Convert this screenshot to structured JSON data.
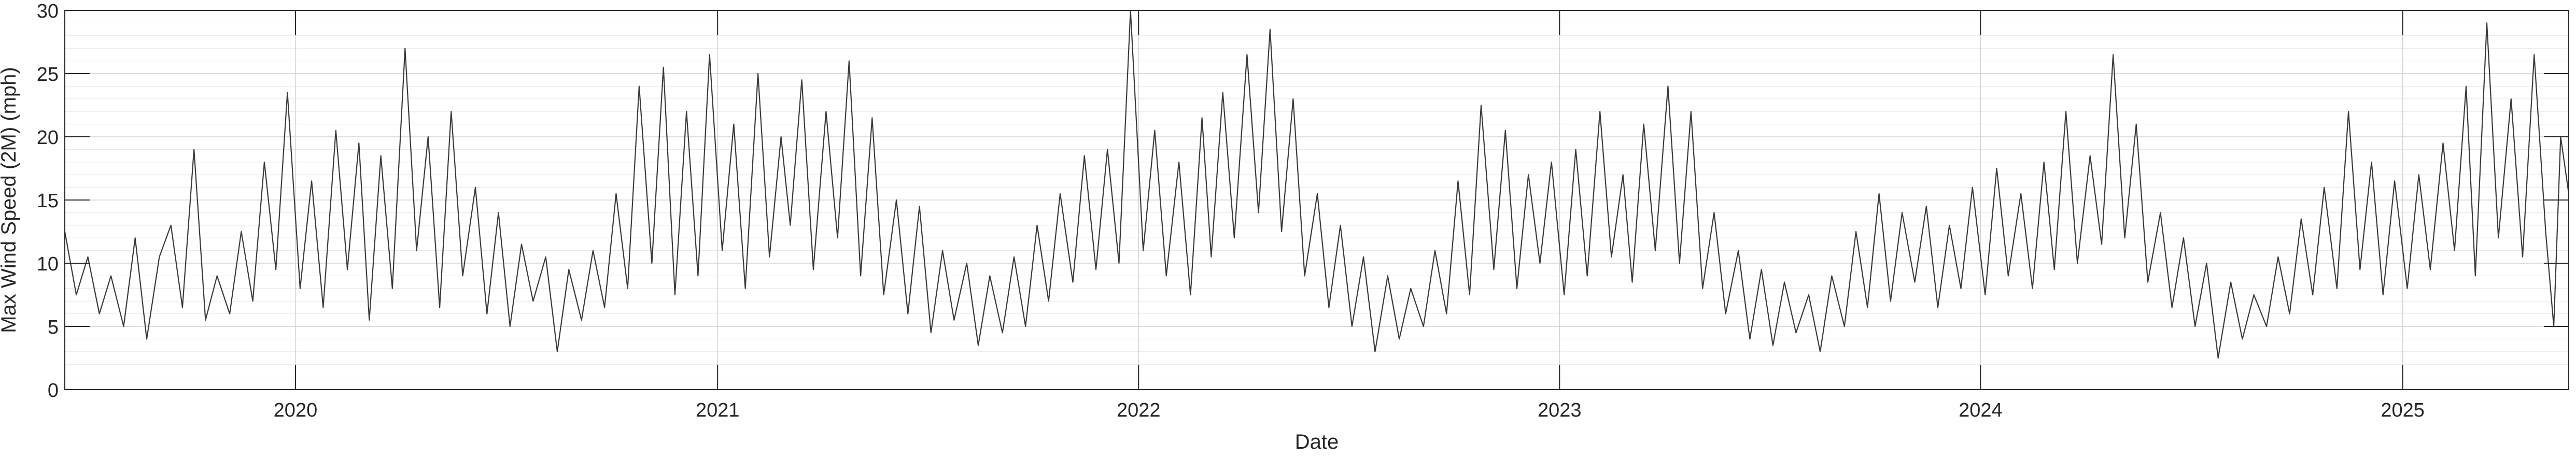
{
  "chart_data": {
    "type": "line",
    "title": "",
    "xlabel": "Date",
    "ylabel": "Max Wind Speed (2M) (mph)",
    "x_range": [
      "2019-06-15",
      "2025-05-25"
    ],
    "ylim": [
      0,
      30
    ],
    "yticks": [
      0,
      5,
      10,
      15,
      20,
      25,
      30
    ],
    "xticks": [
      {
        "date": "2020-01-01",
        "label": "2020"
      },
      {
        "date": "2021-01-01",
        "label": "2021"
      },
      {
        "date": "2022-01-01",
        "label": "2022"
      },
      {
        "date": "2023-01-01",
        "label": "2023"
      },
      {
        "date": "2024-01-01",
        "label": "2024"
      },
      {
        "date": "2025-01-01",
        "label": "2025"
      }
    ],
    "grid": true,
    "minor_grid": true,
    "line_color": "#3a3a3a",
    "series": [
      {
        "points": [
          [
            "2019-06-15",
            12.5
          ],
          [
            "2019-06-25",
            7.5
          ],
          [
            "2019-07-05",
            10.5
          ],
          [
            "2019-07-15",
            6.0
          ],
          [
            "2019-07-25",
            9.0
          ],
          [
            "2019-08-05",
            5.0
          ],
          [
            "2019-08-15",
            12.0
          ],
          [
            "2019-08-25",
            4.0
          ],
          [
            "2019-09-05",
            10.5
          ],
          [
            "2019-09-15",
            13.0
          ],
          [
            "2019-09-25",
            6.5
          ],
          [
            "2019-10-05",
            19.0
          ],
          [
            "2019-10-15",
            5.5
          ],
          [
            "2019-10-25",
            9.0
          ],
          [
            "2019-11-05",
            6.0
          ],
          [
            "2019-11-15",
            12.5
          ],
          [
            "2019-11-25",
            7.0
          ],
          [
            "2019-12-05",
            18.0
          ],
          [
            "2019-12-15",
            9.5
          ],
          [
            "2019-12-25",
            23.5
          ],
          [
            "2020-01-05",
            8.0
          ],
          [
            "2020-01-15",
            16.5
          ],
          [
            "2020-01-25",
            6.5
          ],
          [
            "2020-02-05",
            20.5
          ],
          [
            "2020-02-15",
            9.5
          ],
          [
            "2020-02-25",
            19.5
          ],
          [
            "2020-03-05",
            5.5
          ],
          [
            "2020-03-15",
            18.5
          ],
          [
            "2020-03-25",
            8.0
          ],
          [
            "2020-04-05",
            27.0
          ],
          [
            "2020-04-15",
            11.0
          ],
          [
            "2020-04-25",
            20.0
          ],
          [
            "2020-05-05",
            6.5
          ],
          [
            "2020-05-15",
            22.0
          ],
          [
            "2020-05-25",
            9.0
          ],
          [
            "2020-06-05",
            16.0
          ],
          [
            "2020-06-15",
            6.0
          ],
          [
            "2020-06-25",
            14.0
          ],
          [
            "2020-07-05",
            5.0
          ],
          [
            "2020-07-15",
            11.5
          ],
          [
            "2020-07-25",
            7.0
          ],
          [
            "2020-08-05",
            10.5
          ],
          [
            "2020-08-15",
            3.0
          ],
          [
            "2020-08-25",
            9.5
          ],
          [
            "2020-09-05",
            5.5
          ],
          [
            "2020-09-15",
            11.0
          ],
          [
            "2020-09-25",
            6.5
          ],
          [
            "2020-10-05",
            15.5
          ],
          [
            "2020-10-15",
            8.0
          ],
          [
            "2020-10-25",
            24.0
          ],
          [
            "2020-11-05",
            10.0
          ],
          [
            "2020-11-15",
            25.5
          ],
          [
            "2020-11-25",
            7.5
          ],
          [
            "2020-12-05",
            22.0
          ],
          [
            "2020-12-15",
            9.0
          ],
          [
            "2020-12-25",
            26.5
          ],
          [
            "2021-01-05",
            11.0
          ],
          [
            "2021-01-15",
            21.0
          ],
          [
            "2021-01-25",
            8.0
          ],
          [
            "2021-02-05",
            25.0
          ],
          [
            "2021-02-15",
            10.5
          ],
          [
            "2021-02-25",
            20.0
          ],
          [
            "2021-03-05",
            13.0
          ],
          [
            "2021-03-15",
            24.5
          ],
          [
            "2021-03-25",
            9.5
          ],
          [
            "2021-04-05",
            22.0
          ],
          [
            "2021-04-15",
            12.0
          ],
          [
            "2021-04-25",
            26.0
          ],
          [
            "2021-05-05",
            9.0
          ],
          [
            "2021-05-15",
            21.5
          ],
          [
            "2021-05-25",
            7.5
          ],
          [
            "2021-06-05",
            15.0
          ],
          [
            "2021-06-15",
            6.0
          ],
          [
            "2021-06-25",
            14.5
          ],
          [
            "2021-07-05",
            4.5
          ],
          [
            "2021-07-15",
            11.0
          ],
          [
            "2021-07-25",
            5.5
          ],
          [
            "2021-08-05",
            10.0
          ],
          [
            "2021-08-15",
            3.5
          ],
          [
            "2021-08-25",
            9.0
          ],
          [
            "2021-09-05",
            4.5
          ],
          [
            "2021-09-15",
            10.5
          ],
          [
            "2021-09-25",
            5.0
          ],
          [
            "2021-10-05",
            13.0
          ],
          [
            "2021-10-15",
            7.0
          ],
          [
            "2021-10-25",
            15.5
          ],
          [
            "2021-11-05",
            8.5
          ],
          [
            "2021-11-15",
            18.5
          ],
          [
            "2021-11-25",
            9.5
          ],
          [
            "2021-12-05",
            19.0
          ],
          [
            "2021-12-15",
            10.0
          ],
          [
            "2021-12-25",
            30.0
          ],
          [
            "2022-01-05",
            11.0
          ],
          [
            "2022-01-15",
            20.5
          ],
          [
            "2022-01-25",
            9.0
          ],
          [
            "2022-02-05",
            18.0
          ],
          [
            "2022-02-15",
            7.5
          ],
          [
            "2022-02-25",
            21.5
          ],
          [
            "2022-03-05",
            10.5
          ],
          [
            "2022-03-15",
            23.5
          ],
          [
            "2022-03-25",
            12.0
          ],
          [
            "2022-04-05",
            26.5
          ],
          [
            "2022-04-15",
            14.0
          ],
          [
            "2022-04-25",
            28.5
          ],
          [
            "2022-05-05",
            12.5
          ],
          [
            "2022-05-15",
            23.0
          ],
          [
            "2022-05-25",
            9.0
          ],
          [
            "2022-06-05",
            15.5
          ],
          [
            "2022-06-15",
            6.5
          ],
          [
            "2022-06-25",
            13.0
          ],
          [
            "2022-07-05",
            5.0
          ],
          [
            "2022-07-15",
            10.5
          ],
          [
            "2022-07-25",
            3.0
          ],
          [
            "2022-08-05",
            9.0
          ],
          [
            "2022-08-15",
            4.0
          ],
          [
            "2022-08-25",
            8.0
          ],
          [
            "2022-09-05",
            5.0
          ],
          [
            "2022-09-15",
            11.0
          ],
          [
            "2022-09-25",
            6.0
          ],
          [
            "2022-10-05",
            16.5
          ],
          [
            "2022-10-15",
            7.5
          ],
          [
            "2022-10-25",
            22.5
          ],
          [
            "2022-11-05",
            9.5
          ],
          [
            "2022-11-15",
            20.5
          ],
          [
            "2022-11-25",
            8.0
          ],
          [
            "2022-12-05",
            17.0
          ],
          [
            "2022-12-15",
            10.0
          ],
          [
            "2022-12-25",
            18.0
          ],
          [
            "2023-01-05",
            7.5
          ],
          [
            "2023-01-15",
            19.0
          ],
          [
            "2023-01-25",
            9.0
          ],
          [
            "2023-02-05",
            22.0
          ],
          [
            "2023-02-15",
            10.5
          ],
          [
            "2023-02-25",
            17.0
          ],
          [
            "2023-03-05",
            8.5
          ],
          [
            "2023-03-15",
            21.0
          ],
          [
            "2023-03-25",
            11.0
          ],
          [
            "2023-04-05",
            24.0
          ],
          [
            "2023-04-15",
            10.0
          ],
          [
            "2023-04-25",
            22.0
          ],
          [
            "2023-05-05",
            8.0
          ],
          [
            "2023-05-15",
            14.0
          ],
          [
            "2023-05-25",
            6.0
          ],
          [
            "2023-06-05",
            11.0
          ],
          [
            "2023-06-15",
            4.0
          ],
          [
            "2023-06-25",
            9.5
          ],
          [
            "2023-07-05",
            3.5
          ],
          [
            "2023-07-15",
            8.5
          ],
          [
            "2023-07-25",
            4.5
          ],
          [
            "2023-08-05",
            7.5
          ],
          [
            "2023-08-15",
            3.0
          ],
          [
            "2023-08-25",
            9.0
          ],
          [
            "2023-09-05",
            5.0
          ],
          [
            "2023-09-15",
            12.5
          ],
          [
            "2023-09-25",
            6.5
          ],
          [
            "2023-10-05",
            15.5
          ],
          [
            "2023-10-15",
            7.0
          ],
          [
            "2023-10-25",
            14.0
          ],
          [
            "2023-11-05",
            8.5
          ],
          [
            "2023-11-15",
            14.5
          ],
          [
            "2023-11-25",
            6.5
          ],
          [
            "2023-12-05",
            13.0
          ],
          [
            "2023-12-15",
            8.0
          ],
          [
            "2023-12-25",
            16.0
          ],
          [
            "2024-01-05",
            7.5
          ],
          [
            "2024-01-15",
            17.5
          ],
          [
            "2024-01-25",
            9.0
          ],
          [
            "2024-02-05",
            15.5
          ],
          [
            "2024-02-15",
            8.0
          ],
          [
            "2024-02-25",
            18.0
          ],
          [
            "2024-03-05",
            9.5
          ],
          [
            "2024-03-15",
            22.0
          ],
          [
            "2024-03-25",
            10.0
          ],
          [
            "2024-04-05",
            18.5
          ],
          [
            "2024-04-15",
            11.5
          ],
          [
            "2024-04-25",
            26.5
          ],
          [
            "2024-05-05",
            12.0
          ],
          [
            "2024-05-15",
            21.0
          ],
          [
            "2024-05-25",
            8.5
          ],
          [
            "2024-06-05",
            14.0
          ],
          [
            "2024-06-15",
            6.5
          ],
          [
            "2024-06-25",
            12.0
          ],
          [
            "2024-07-05",
            5.0
          ],
          [
            "2024-07-15",
            10.0
          ],
          [
            "2024-07-25",
            2.5
          ],
          [
            "2024-08-05",
            8.5
          ],
          [
            "2024-08-15",
            4.0
          ],
          [
            "2024-08-25",
            7.5
          ],
          [
            "2024-09-05",
            5.0
          ],
          [
            "2024-09-15",
            10.5
          ],
          [
            "2024-09-25",
            6.0
          ],
          [
            "2024-10-05",
            13.5
          ],
          [
            "2024-10-15",
            7.5
          ],
          [
            "2024-10-25",
            16.0
          ],
          [
            "2024-11-05",
            8.0
          ],
          [
            "2024-11-15",
            22.0
          ],
          [
            "2024-11-25",
            9.5
          ],
          [
            "2024-12-05",
            18.0
          ],
          [
            "2024-12-15",
            7.5
          ],
          [
            "2024-12-25",
            16.5
          ],
          [
            "2025-01-05",
            8.0
          ],
          [
            "2025-01-15",
            17.0
          ],
          [
            "2025-01-25",
            9.5
          ],
          [
            "2025-02-05",
            19.5
          ],
          [
            "2025-02-15",
            11.0
          ],
          [
            "2025-02-25",
            24.0
          ],
          [
            "2025-03-05",
            9.0
          ],
          [
            "2025-03-15",
            29.0
          ],
          [
            "2025-03-25",
            12.0
          ],
          [
            "2025-04-05",
            23.0
          ],
          [
            "2025-04-15",
            10.5
          ],
          [
            "2025-04-25",
            26.5
          ],
          [
            "2025-05-05",
            12.5
          ],
          [
            "2025-05-12",
            5.0
          ],
          [
            "2025-05-18",
            20.0
          ],
          [
            "2025-05-25",
            15.5
          ]
        ]
      }
    ]
  }
}
